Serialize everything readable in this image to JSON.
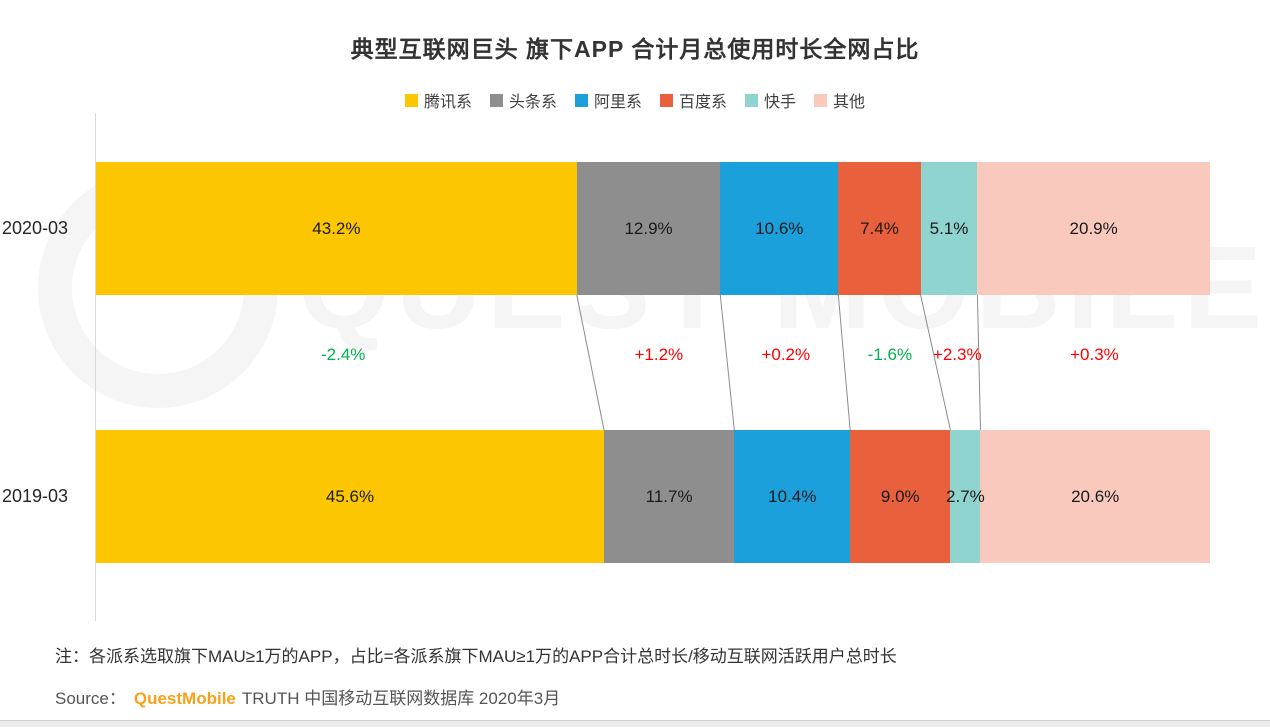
{
  "page": {
    "title": "典型互联网巨头 旗下APP 合计月总使用时长全网占比"
  },
  "chart_data": {
    "type": "bar",
    "orientation": "horizontal_stacked",
    "title": "典型互联网巨头 旗下APP 合计月总使用时长全网占比",
    "legend_position": "top",
    "xlim": [
      0,
      100
    ],
    "series_labels": [
      "腾讯系",
      "头条系",
      "阿里系",
      "百度系",
      "快手",
      "其他"
    ],
    "series_colors": [
      "#FCC600",
      "#8E8E8E",
      "#1BA0DC",
      "#E8603C",
      "#8FD4CF",
      "#F9C9BE"
    ],
    "rows": [
      {
        "category": "2020-03",
        "values": [
          43.2,
          12.9,
          10.6,
          7.4,
          5.1,
          20.9
        ],
        "labels": [
          "43.2%",
          "12.9%",
          "10.6%",
          "7.4%",
          "5.1%",
          "20.9%"
        ]
      },
      {
        "category": "2019-03",
        "values": [
          45.6,
          11.7,
          10.4,
          9.0,
          2.7,
          20.6
        ],
        "labels": [
          "45.6%",
          "11.7%",
          "10.4%",
          "9.0%",
          "2.7%",
          "20.6%"
        ]
      }
    ],
    "changes": [
      {
        "text": "-2.4%",
        "color": "#00B050"
      },
      {
        "text": "+1.2%",
        "color": "#FF0000"
      },
      {
        "text": "+0.2%",
        "color": "#FF0000"
      },
      {
        "text": "-1.6%",
        "color": "#00B050"
      },
      {
        "text": "+2.3%",
        "color": "#FF0000"
      },
      {
        "text": "+0.3%",
        "color": "#FF0000"
      }
    ],
    "connector_line_color": "#8c8c8c",
    "value_label_color": "#1a1a1a"
  },
  "watermark": {
    "text": "QUEST MOBILE"
  },
  "footer": {
    "note": "注：各派系选取旗下MAU≥1万的APP，占比=各派系旗下MAU≥1万的APP合计总时长/移动互联网活跃用户总时长",
    "source_prefix": "Source：",
    "brand": "QuestMobile",
    "brand_color": "#F9A11B",
    "source_suffix": "TRUTH 中国移动互联网数据库 2020年3月"
  }
}
